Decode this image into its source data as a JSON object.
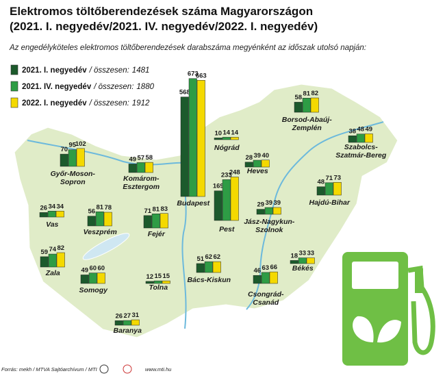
{
  "chart_data": {
    "type": "map-bar",
    "title": [
      "Elektromos töltőberendezések száma Magyarországon",
      "(2021. I. negyedév/2021. IV. negyedév/2022. I. negyedév)"
    ],
    "subtitle": "Az engedélyköteles elektromos töltőberendezések darabszáma megyénként az időszak utolsó napján:",
    "total_label": "/ összesen:",
    "categories": [
      [
        "Győr-Moson-",
        "Sopron"
      ],
      [
        "Komárom-",
        "Esztergom"
      ],
      [
        "Vas"
      ],
      [
        "Veszprém"
      ],
      [
        "Fejér"
      ],
      [
        "Budapest"
      ],
      [
        "Pest"
      ],
      [
        "Nógrád"
      ],
      [
        "Heves"
      ],
      [
        "Borsod-Abaúj-",
        "Zemplén"
      ],
      [
        "Szabolcs-",
        "Szatmár-Bereg"
      ],
      [
        "Hajdú-Bihar"
      ],
      [
        "Jász-Nagykun-",
        "Szolnok"
      ],
      [
        "Békés"
      ],
      [
        "Csongrád-",
        "Csanád"
      ],
      [
        "Bács-Kiskun"
      ],
      [
        "Tolna"
      ],
      [
        "Zala"
      ],
      [
        "Somogy"
      ],
      [
        "Baranya"
      ]
    ],
    "series": [
      {
        "name": "2021. I. negyedév",
        "total": 1481,
        "color": "#1c5a2c",
        "values": [
          70,
          49,
          26,
          56,
          71,
          568,
          169,
          10,
          28,
          58,
          38,
          48,
          29,
          18,
          46,
          51,
          12,
          59,
          49,
          26
        ]
      },
      {
        "name": "2021. IV. negyedév",
        "total": 1880,
        "color": "#2e9c45",
        "values": [
          95,
          57,
          34,
          81,
          81,
          673,
          233,
          14,
          39,
          81,
          48,
          71,
          39,
          33,
          63,
          62,
          15,
          74,
          60,
          27
        ]
      },
      {
        "name": "2022. I. negyedév",
        "total": 1912,
        "color": "#f4d900",
        "values": [
          102,
          58,
          34,
          78,
          83,
          663,
          248,
          14,
          40,
          82,
          49,
          73,
          39,
          33,
          66,
          62,
          15,
          82,
          60,
          31
        ]
      }
    ]
  },
  "footer": {
    "source": "Forrás: mekh / MTVA Sajtóarchívum / MTI",
    "website": "www.mti.hu"
  }
}
